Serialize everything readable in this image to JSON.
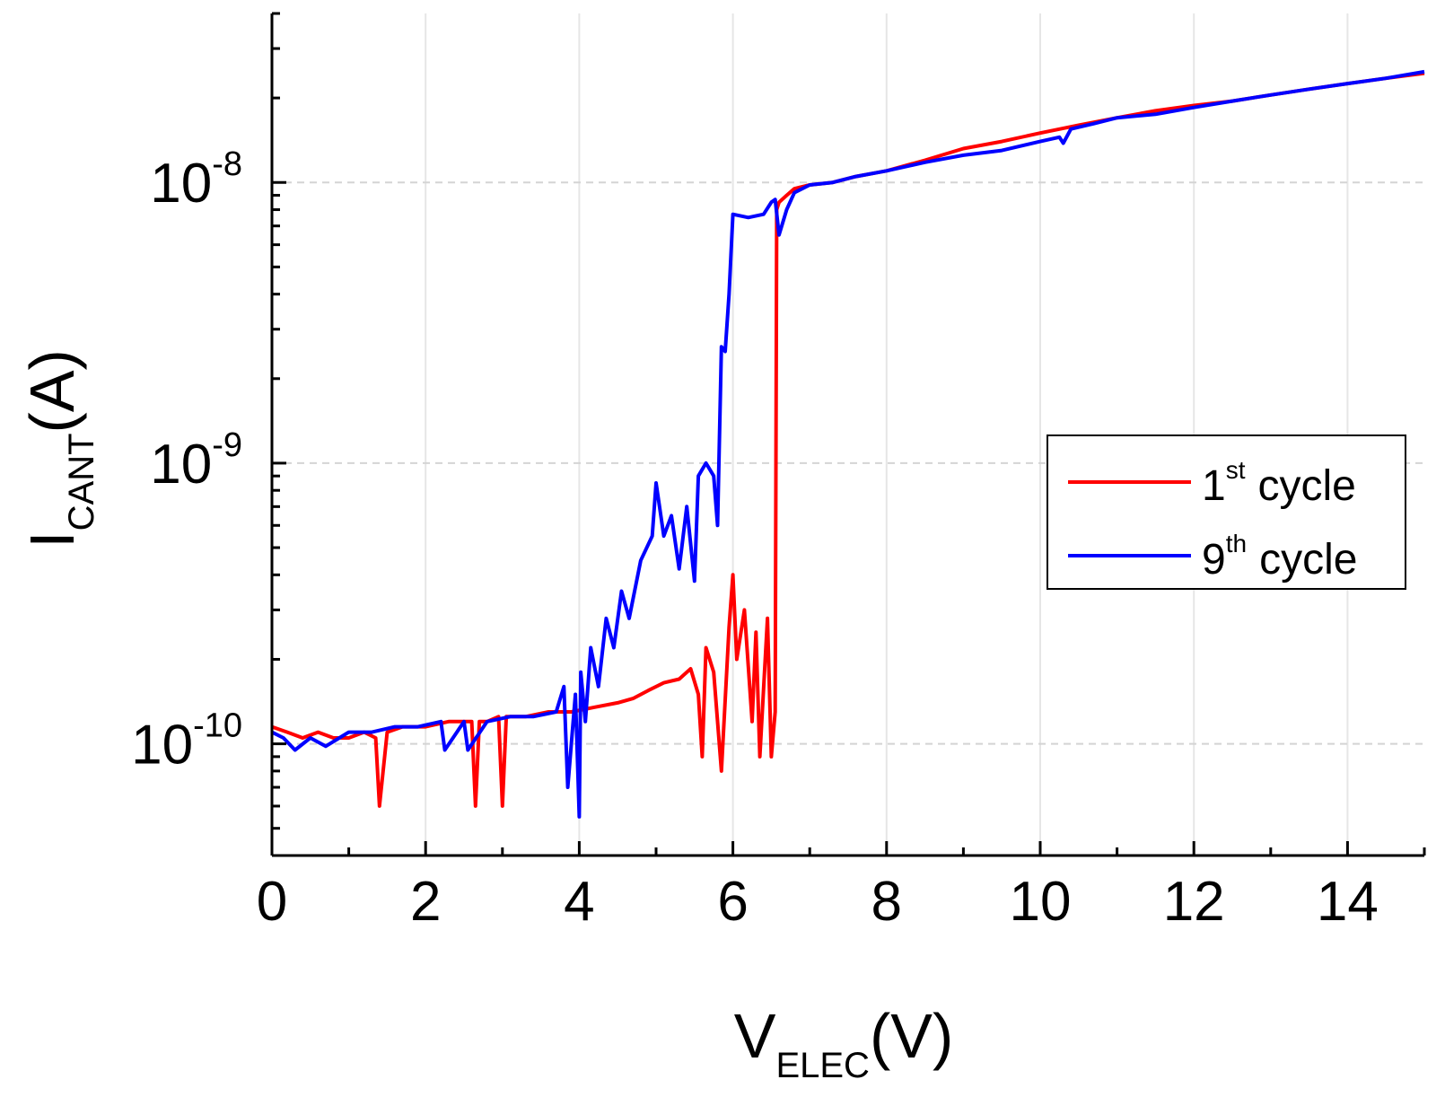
{
  "chart_data": {
    "type": "line",
    "title": "",
    "xlabel": {
      "main": "V",
      "sub": "ELEC",
      "unit": "(V)"
    },
    "ylabel": {
      "main": "I",
      "sub": "CANT",
      "unit": "(A)"
    },
    "xlim": [
      0,
      15
    ],
    "ylim": [
      4e-11,
      4e-08
    ],
    "yscale": "log",
    "x_ticks": [
      0,
      2,
      4,
      6,
      8,
      10,
      12,
      14
    ],
    "x_tick_labels": [
      "0",
      "2",
      "4",
      "6",
      "8",
      "10",
      "12",
      "14"
    ],
    "y_ticks": [
      1e-10,
      1e-09,
      1e-08
    ],
    "y_tick_labels": [
      {
        "base": "10",
        "exp": "-10"
      },
      {
        "base": "10",
        "exp": "-9"
      },
      {
        "base": "10",
        "exp": "-8"
      }
    ],
    "grid": true,
    "legend_position": "right",
    "series": [
      {
        "name": "1st cycle",
        "label": {
          "num": "1",
          "sup": "st",
          "text": "cycle"
        },
        "color": "#ff0000",
        "x": [
          0,
          0.2,
          0.4,
          0.6,
          0.8,
          1.0,
          1.2,
          1.35,
          1.4,
          1.5,
          1.7,
          2.0,
          2.3,
          2.6,
          2.65,
          2.7,
          2.8,
          2.95,
          3.0,
          3.05,
          3.3,
          3.6,
          3.9,
          4.2,
          4.5,
          4.7,
          4.9,
          5.1,
          5.3,
          5.45,
          5.55,
          5.6,
          5.65,
          5.75,
          5.85,
          5.95,
          6.0,
          6.05,
          6.15,
          6.25,
          6.3,
          6.35,
          6.45,
          6.5,
          6.55,
          6.57,
          6.6,
          6.7,
          6.8,
          7.0,
          7.3,
          7.6,
          8.0,
          8.5,
          9.0,
          9.5,
          10.0,
          10.5,
          11.0,
          11.5,
          12.0,
          12.5,
          13.0,
          13.5,
          14.0,
          14.5,
          15.0
        ],
        "y": [
          1.15e-10,
          1.1e-10,
          1.05e-10,
          1.1e-10,
          1.05e-10,
          1.05e-10,
          1.1e-10,
          1.05e-10,
          6e-11,
          1.1e-10,
          1.15e-10,
          1.15e-10,
          1.2e-10,
          1.2e-10,
          6e-11,
          1.2e-10,
          1.2e-10,
          1.25e-10,
          6e-11,
          1.25e-10,
          1.25e-10,
          1.3e-10,
          1.3e-10,
          1.35e-10,
          1.4e-10,
          1.45e-10,
          1.55e-10,
          1.65e-10,
          1.7e-10,
          1.85e-10,
          1.5e-10,
          9e-11,
          2.2e-10,
          1.8e-10,
          8e-11,
          2.6e-10,
          4e-10,
          2e-10,
          3e-10,
          1.2e-10,
          2.5e-10,
          9e-11,
          2.8e-10,
          9e-11,
          1.3e-10,
          8e-09,
          8.5e-09,
          9e-09,
          9.5e-09,
          9.8e-09,
          1e-08,
          1.05e-08,
          1.1e-08,
          1.2e-08,
          1.32e-08,
          1.4e-08,
          1.5e-08,
          1.6e-08,
          1.7e-08,
          1.8e-08,
          1.88e-08,
          1.95e-08,
          2.05e-08,
          2.15e-08,
          2.25e-08,
          2.35e-08,
          2.45e-08
        ]
      },
      {
        "name": "9th cycle",
        "label": {
          "num": "9",
          "sup": "th",
          "text": "cycle"
        },
        "color": "#0000ff",
        "x": [
          0,
          0.15,
          0.3,
          0.5,
          0.7,
          1.0,
          1.3,
          1.6,
          1.9,
          2.2,
          2.25,
          2.5,
          2.55,
          2.8,
          3.1,
          3.4,
          3.7,
          3.8,
          3.85,
          3.95,
          4.0,
          4.02,
          4.08,
          4.15,
          4.25,
          4.35,
          4.45,
          4.55,
          4.65,
          4.8,
          4.95,
          5.0,
          5.1,
          5.2,
          5.3,
          5.4,
          5.5,
          5.55,
          5.65,
          5.75,
          5.8,
          5.85,
          5.9,
          5.95,
          6.0,
          6.2,
          6.4,
          6.5,
          6.55,
          6.6,
          6.7,
          6.8,
          7.0,
          7.3,
          7.6,
          8.0,
          8.5,
          9.0,
          9.5,
          10.0,
          10.25,
          10.3,
          10.4,
          10.7,
          11.0,
          11.5,
          12.0,
          12.5,
          13.0,
          13.5,
          14.0,
          14.5,
          15.0
        ],
        "y": [
          1.1e-10,
          1.05e-10,
          9.5e-11,
          1.05e-10,
          9.8e-11,
          1.1e-10,
          1.1e-10,
          1.15e-10,
          1.15e-10,
          1.2e-10,
          9.5e-11,
          1.2e-10,
          9.5e-11,
          1.2e-10,
          1.25e-10,
          1.25e-10,
          1.3e-10,
          1.6e-10,
          7e-11,
          1.5e-10,
          5.5e-11,
          1.8e-10,
          1.2e-10,
          2.2e-10,
          1.6e-10,
          2.8e-10,
          2.2e-10,
          3.5e-10,
          2.8e-10,
          4.5e-10,
          5.5e-10,
          8.5e-10,
          5.5e-10,
          6.5e-10,
          4.2e-10,
          7e-10,
          3.8e-10,
          9e-10,
          1e-09,
          9e-10,
          6e-10,
          2.6e-09,
          2.5e-09,
          4e-09,
          7.7e-09,
          7.5e-09,
          7.7e-09,
          8.5e-09,
          8.7e-09,
          6.5e-09,
          8e-09,
          9.2e-09,
          9.8e-09,
          1e-08,
          1.05e-08,
          1.1e-08,
          1.18e-08,
          1.25e-08,
          1.3e-08,
          1.4e-08,
          1.45e-08,
          1.38e-08,
          1.55e-08,
          1.62e-08,
          1.7e-08,
          1.75e-08,
          1.85e-08,
          1.95e-08,
          2.05e-08,
          2.15e-08,
          2.25e-08,
          2.35e-08,
          2.48e-08
        ]
      }
    ]
  }
}
